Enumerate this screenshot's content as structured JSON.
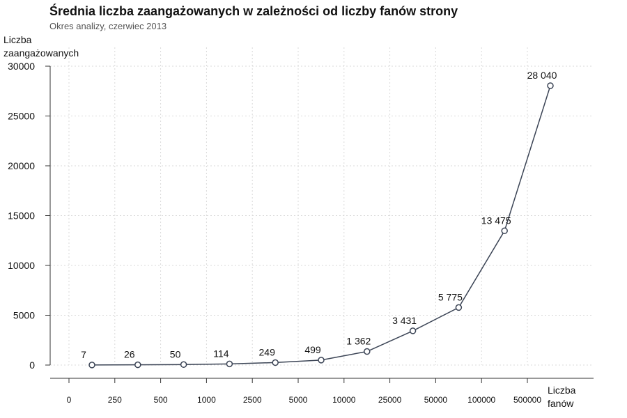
{
  "chart_data": {
    "type": "line",
    "title": "Średnia liczba zaangażowanych w zależności od liczby fanów strony",
    "subtitle": "Okres analizy, czerwiec 2013",
    "ylabel_lines": [
      "Liczba",
      "zaangażowanych"
    ],
    "xlabel_lines": [
      "Liczba",
      "fanów"
    ],
    "x_tick_labels": [
      "0",
      "250",
      "500",
      "1000",
      "2500",
      "5000",
      "10000",
      "25000",
      "50000",
      "100000",
      "500000"
    ],
    "y_tick_labels": [
      "0",
      "5000",
      "10000",
      "15000",
      "20000",
      "25000",
      "30000"
    ],
    "y_ticks": [
      0,
      5000,
      10000,
      15000,
      20000,
      25000,
      30000
    ],
    "ylim": [
      0,
      30000
    ],
    "grid": true,
    "series": [
      {
        "values": [
          7,
          26,
          50,
          114,
          249,
          499,
          1362,
          3431,
          5775,
          13475,
          28040
        ],
        "labels": [
          "7",
          "26",
          "50",
          "114",
          "249",
          "499",
          "1 362",
          "3 431",
          "5 775",
          "13 475",
          "28 040"
        ]
      }
    ],
    "colors": {
      "line": "#3b4455",
      "marker_fill": "#ffffff",
      "grid": "#d9d9d9",
      "axis": "#333333"
    }
  }
}
